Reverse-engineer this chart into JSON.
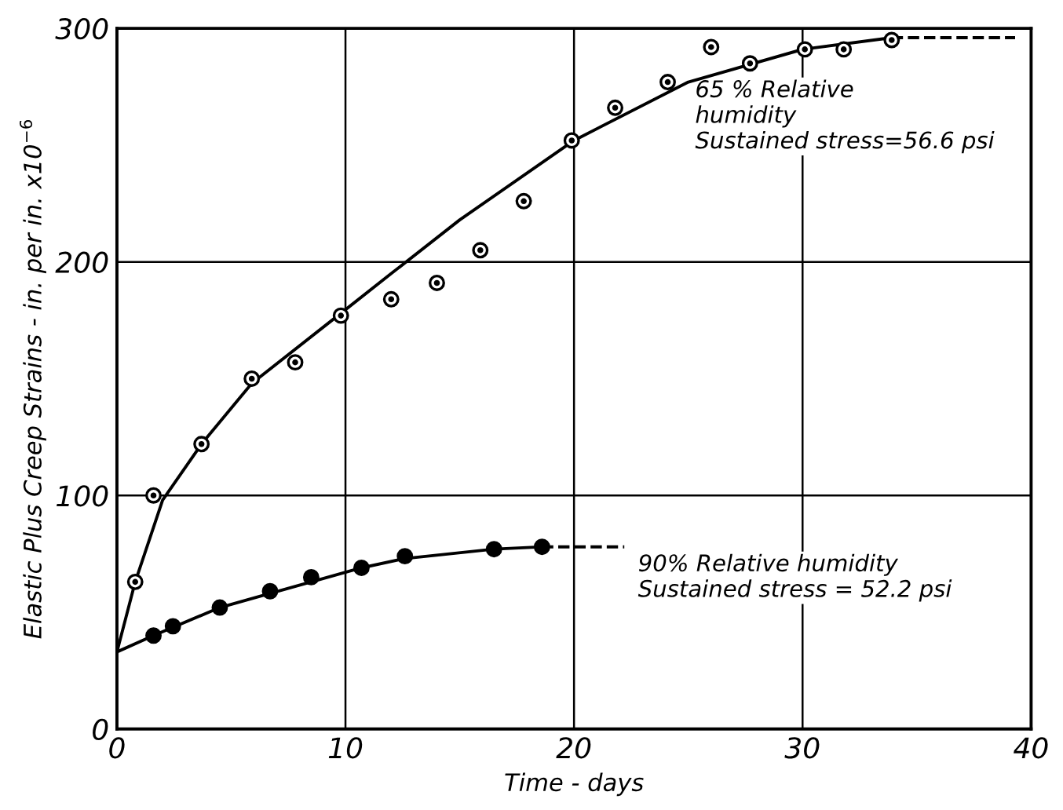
{
  "chart_data": {
    "type": "scatter",
    "xlabel": "Time - days",
    "ylabel": "Elastic Plus Creep Strains - in. per in. x10$^{−6}$",
    "xlim": [
      0,
      40
    ],
    "ylim": [
      0,
      300
    ],
    "xticks": [
      0,
      10,
      20,
      30,
      40
    ],
    "yticks": [
      0,
      100,
      200,
      300
    ],
    "grid": true,
    "series": [
      {
        "marker": "circle",
        "color": "#ffffff",
        "x": [
          0.8,
          1.6,
          3.7,
          5.9,
          7.8,
          9.8,
          12.0,
          14.0,
          15.9,
          17.8,
          19.9,
          21.8,
          24.1,
          26.0,
          27.7,
          30.1,
          31.8,
          33.9
        ],
        "values": [
          63,
          100,
          122,
          150,
          157,
          177,
          184,
          191,
          205,
          226,
          252,
          266,
          277,
          292,
          285,
          291,
          291,
          295
        ]
      },
      {
        "marker": "circle",
        "color": "#000000",
        "x": [
          1.6,
          2.45,
          4.5,
          6.7,
          8.5,
          10.7,
          12.6,
          16.5,
          18.6
        ],
        "values": [
          40,
          44,
          52,
          59,
          65,
          69,
          74,
          77,
          78
        ]
      },
      {
        "type": "line",
        "color": "#000000",
        "line_style": "solid",
        "x": [
          0,
          0.8,
          2,
          3.7,
          5.9,
          9.8,
          12,
          15,
          20,
          25,
          30,
          33.9
        ],
        "values": [
          33,
          63,
          98,
          122,
          148,
          178,
          195,
          218,
          252,
          277,
          291,
          296
        ]
      },
      {
        "type": "line",
        "color": "#000000",
        "line_style": "dashed",
        "x": [
          33.9,
          39.3
        ],
        "values": [
          296,
          296
        ]
      },
      {
        "type": "line",
        "color": "#000000",
        "line_style": "solid",
        "x": [
          0,
          1.6,
          4.5,
          8.5,
          10.7,
          12.6,
          16.5,
          18.6
        ],
        "values": [
          33,
          40,
          52,
          63,
          69,
          73,
          77,
          78
        ]
      },
      {
        "type": "line",
        "color": "#000000",
        "line_style": "dashed",
        "x": [
          18.6,
          22.2
        ],
        "values": [
          78,
          78
        ]
      }
    ],
    "annotations": [
      {
        "text": "65 % Relative\nhumidity\nSustained stress=56.6 psi",
        "x": 33.9,
        "y": 296
      },
      {
        "text": "90% Relative humidity\nSustained stress = 52.2 psi",
        "x": 22.2,
        "y": 78
      }
    ]
  }
}
